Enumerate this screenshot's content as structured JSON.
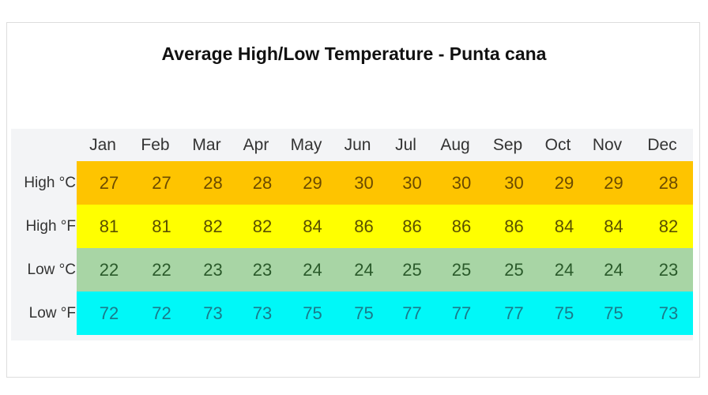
{
  "chart_data": {
    "type": "table",
    "title": "Average High/Low Temperature - Punta cana",
    "categories": [
      "Jan",
      "Feb",
      "Mar",
      "Apr",
      "May",
      "Jun",
      "Jul",
      "Aug",
      "Sep",
      "Oct",
      "Nov",
      "Dec"
    ],
    "series": [
      {
        "name": "High °C",
        "values": [
          27,
          27,
          28,
          28,
          29,
          30,
          30,
          30,
          30,
          29,
          29,
          28
        ],
        "color": "#fec400",
        "text_color": "#6b4a00"
      },
      {
        "name": "High °F",
        "values": [
          81,
          81,
          82,
          82,
          84,
          86,
          86,
          86,
          86,
          84,
          84,
          82
        ],
        "color": "#ffff00",
        "text_color": "#5a5000"
      },
      {
        "name": "Low °C",
        "values": [
          22,
          22,
          23,
          23,
          24,
          24,
          25,
          25,
          25,
          24,
          24,
          23
        ],
        "color": "#a8d5a5",
        "text_color": "#2a5a2a"
      },
      {
        "name": "Low °F",
        "values": [
          72,
          72,
          73,
          73,
          75,
          75,
          77,
          77,
          77,
          75,
          75,
          73
        ],
        "color": "#00f8f8",
        "text_color": "#1a7a8a"
      }
    ]
  }
}
